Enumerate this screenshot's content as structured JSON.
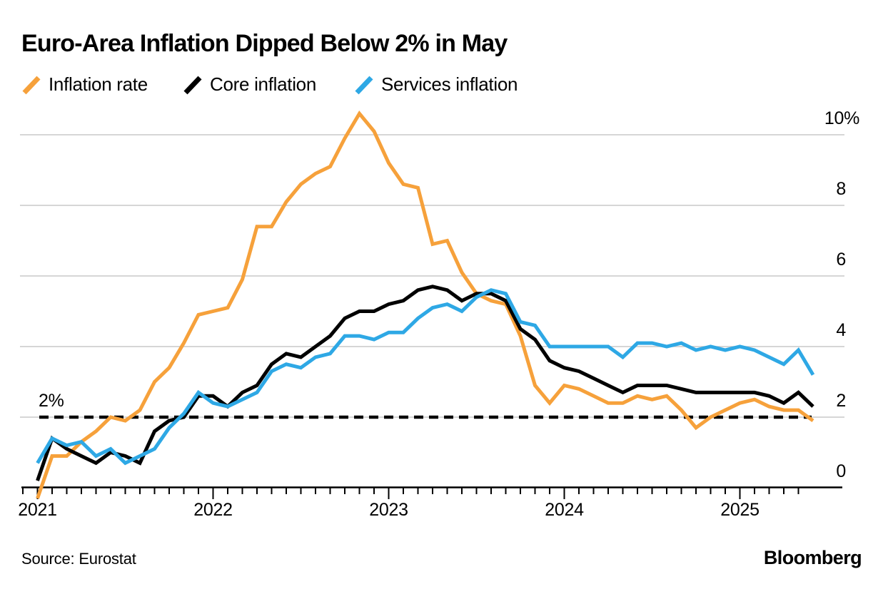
{
  "header": {
    "title": "Euro-Area Inflation Dipped Below 2% in May"
  },
  "legend": {
    "items": [
      {
        "label": "Inflation rate",
        "color": "#F6A13B"
      },
      {
        "label": "Core inflation",
        "color": "#000000"
      },
      {
        "label": "Services inflation",
        "color": "#2EA8E5"
      }
    ]
  },
  "annotations": {
    "target_label": "2%"
  },
  "footer": {
    "source": "Source: Eurostat",
    "brand": "Bloomberg"
  },
  "chart_data": {
    "type": "line",
    "title": "Euro-Area Inflation Dipped Below 2% in May",
    "x_start": "2020-12",
    "x_end": "2025-05",
    "x_freq": "monthly",
    "x_tick_labels": [
      "2021",
      "2022",
      "2023",
      "2024",
      "2025"
    ],
    "y_ticks": [
      {
        "label": "0",
        "value": 0
      },
      {
        "label": "2",
        "value": 2
      },
      {
        "label": "4",
        "value": 4
      },
      {
        "label": "6",
        "value": 6
      },
      {
        "label": "8",
        "value": 8
      },
      {
        "label": "10%",
        "value": 10
      }
    ],
    "ylim": [
      -0.4,
      10.8
    ],
    "grid_values": [
      2,
      4,
      6,
      8,
      10
    ],
    "grid_on": true,
    "legend_position": "top",
    "target_line": {
      "label": "2%",
      "value": 2,
      "style": "dashed",
      "color": "#000000"
    },
    "series": [
      {
        "name": "Inflation rate",
        "color": "#F6A13B",
        "values": [
          -0.3,
          0.9,
          0.9,
          1.3,
          1.6,
          2.0,
          1.9,
          2.2,
          3.0,
          3.4,
          4.1,
          4.9,
          5.0,
          5.1,
          5.9,
          7.4,
          7.4,
          8.1,
          8.6,
          8.9,
          9.1,
          9.9,
          10.6,
          10.1,
          9.2,
          8.6,
          8.5,
          6.9,
          7.0,
          6.1,
          5.5,
          5.3,
          5.2,
          4.3,
          2.9,
          2.4,
          2.9,
          2.8,
          2.6,
          2.4,
          2.4,
          2.6,
          2.5,
          2.6,
          2.2,
          1.7,
          2.0,
          2.2,
          2.4,
          2.5,
          2.3,
          2.2,
          2.2,
          1.9
        ]
      },
      {
        "name": "Core inflation",
        "color": "#000000",
        "values": [
          0.2,
          1.4,
          1.1,
          0.9,
          0.7,
          1.0,
          0.9,
          0.7,
          1.6,
          1.9,
          2.0,
          2.6,
          2.6,
          2.3,
          2.7,
          2.9,
          3.5,
          3.8,
          3.7,
          4.0,
          4.3,
          4.8,
          5.0,
          5.0,
          5.2,
          5.3,
          5.6,
          5.7,
          5.6,
          5.3,
          5.5,
          5.5,
          5.3,
          4.5,
          4.2,
          3.6,
          3.4,
          3.3,
          3.1,
          2.9,
          2.7,
          2.9,
          2.9,
          2.9,
          2.8,
          2.7,
          2.7,
          2.7,
          2.7,
          2.7,
          2.6,
          2.4,
          2.7,
          2.3
        ]
      },
      {
        "name": "Services inflation",
        "color": "#2EA8E5",
        "values": [
          0.7,
          1.4,
          1.2,
          1.3,
          0.9,
          1.1,
          0.7,
          0.9,
          1.1,
          1.7,
          2.1,
          2.7,
          2.4,
          2.3,
          2.5,
          2.7,
          3.3,
          3.5,
          3.4,
          3.7,
          3.8,
          4.3,
          4.3,
          4.2,
          4.4,
          4.4,
          4.8,
          5.1,
          5.2,
          5.0,
          5.4,
          5.6,
          5.5,
          4.7,
          4.6,
          4.0,
          4.0,
          4.0,
          4.0,
          4.0,
          3.7,
          4.1,
          4.1,
          4.0,
          4.1,
          3.9,
          4.0,
          3.9,
          4.0,
          3.9,
          3.7,
          3.5,
          3.9,
          3.2
        ]
      }
    ]
  }
}
